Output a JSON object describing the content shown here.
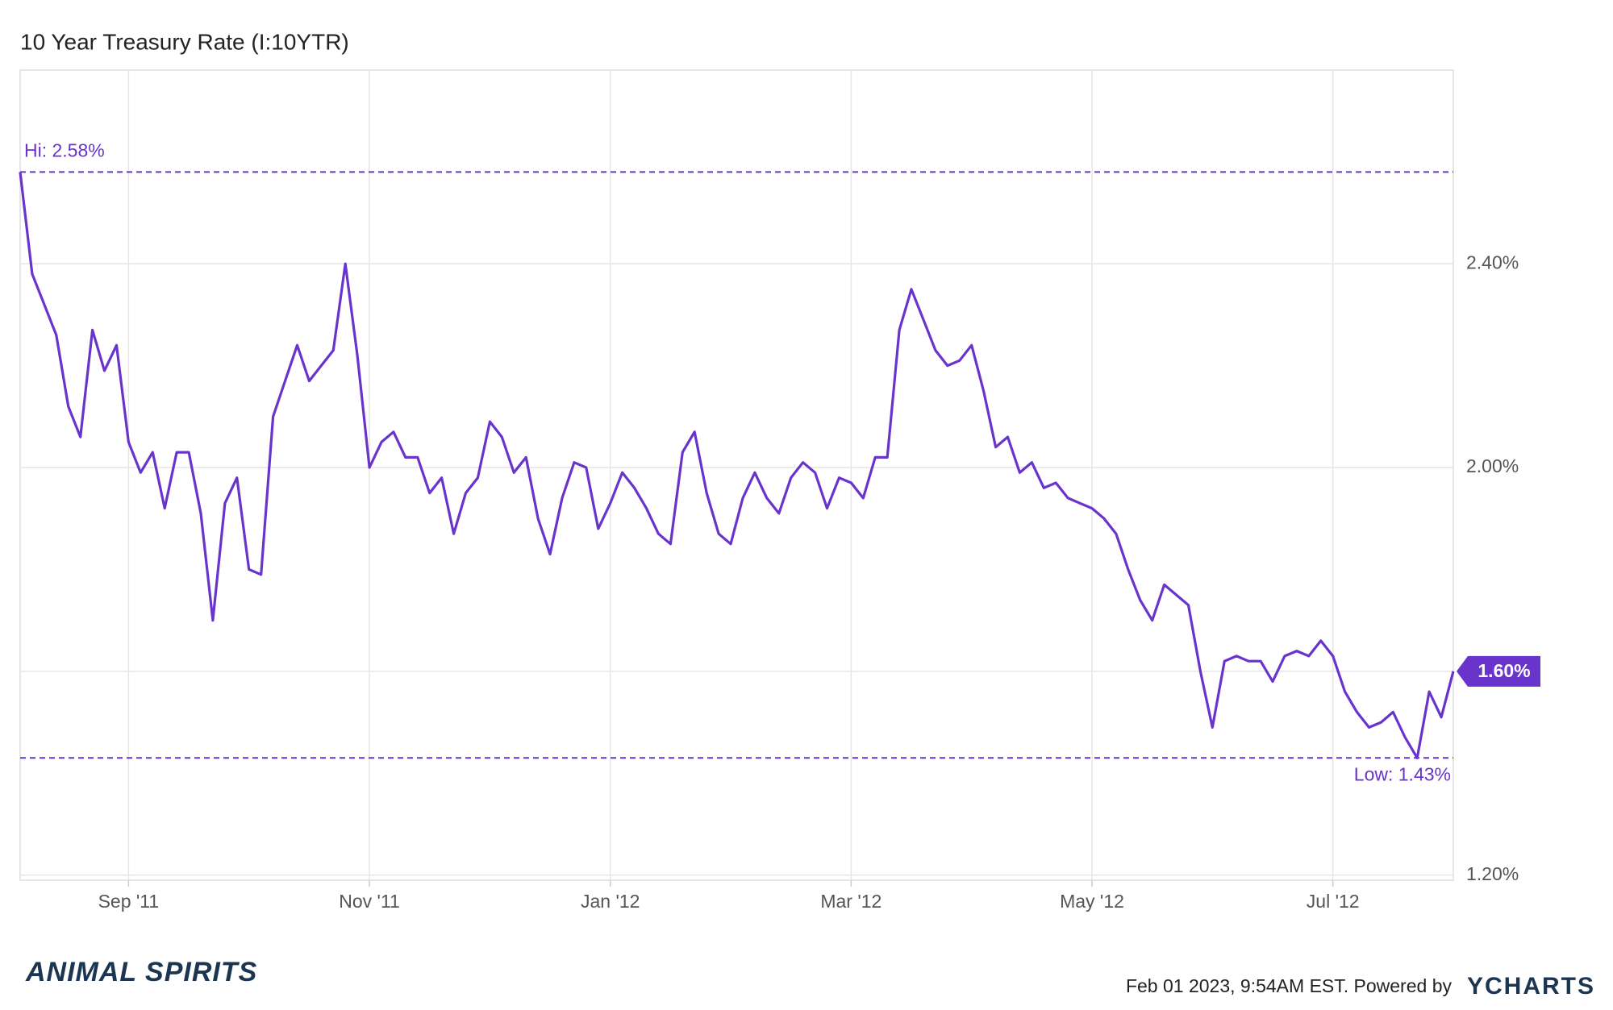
{
  "chart_data": {
    "type": "line",
    "title": "10 Year Treasury Rate (I:10YTR)",
    "categories": [
      null,
      null,
      null,
      null,
      null,
      null,
      null,
      null,
      null,
      "Sep '11",
      null,
      null,
      null,
      null,
      null,
      null,
      null,
      null,
      null,
      null,
      null,
      null,
      null,
      null,
      null,
      null,
      null,
      null,
      null,
      "Nov '11",
      null,
      null,
      null,
      null,
      null,
      null,
      null,
      null,
      null,
      null,
      null,
      null,
      null,
      null,
      null,
      null,
      null,
      null,
      null,
      "Jan '12",
      null,
      null,
      null,
      null,
      null,
      null,
      null,
      null,
      null,
      null,
      null,
      null,
      null,
      null,
      null,
      null,
      null,
      null,
      null,
      "Mar '12",
      null,
      null,
      null,
      null,
      null,
      null,
      null,
      null,
      null,
      null,
      null,
      null,
      null,
      null,
      null,
      null,
      null,
      null,
      null,
      "May '12",
      null,
      null,
      null,
      null,
      null,
      null,
      null,
      null,
      null,
      null,
      null,
      null,
      null,
      null,
      null,
      null,
      null,
      null,
      null,
      "Jul '12",
      null,
      null,
      null,
      null,
      null,
      null,
      null,
      null,
      null,
      null
    ],
    "series": [
      {
        "name": "10 Year Treasury Rate",
        "color": "#6834cc",
        "values": [
          2.58,
          2.38,
          2.32,
          2.26,
          2.12,
          2.06,
          2.27,
          2.19,
          2.24,
          2.05,
          1.99,
          2.03,
          1.92,
          2.03,
          2.03,
          1.91,
          1.7,
          1.93,
          1.98,
          1.8,
          1.79,
          2.1,
          2.17,
          2.24,
          2.17,
          2.2,
          2.23,
          2.4,
          2.22,
          2.0,
          2.05,
          2.07,
          2.02,
          2.02,
          1.95,
          1.98,
          1.87,
          1.95,
          1.98,
          2.09,
          2.06,
          1.99,
          2.02,
          1.9,
          1.83,
          1.94,
          2.01,
          2.0,
          1.88,
          1.93,
          1.99,
          1.96,
          1.92,
          1.87,
          1.85,
          2.03,
          2.07,
          1.95,
          1.87,
          1.85,
          1.94,
          1.99,
          1.94,
          1.91,
          1.98,
          2.01,
          1.99,
          1.92,
          1.98,
          1.97,
          1.94,
          2.02,
          2.02,
          2.27,
          2.35,
          2.29,
          2.23,
          2.2,
          2.21,
          2.24,
          2.15,
          2.04,
          2.06,
          1.99,
          2.01,
          1.96,
          1.97,
          1.94,
          1.93,
          1.92,
          1.9,
          1.87,
          1.8,
          1.74,
          1.7,
          1.77,
          1.75,
          1.73,
          1.6,
          1.49,
          1.62,
          1.63,
          1.62,
          1.62,
          1.58,
          1.63,
          1.64,
          1.63,
          1.66,
          1.63,
          1.56,
          1.52,
          1.49,
          1.5,
          1.52,
          1.47,
          1.43,
          1.56,
          1.51,
          1.6
        ]
      }
    ],
    "ylim": [
      1.19,
      2.78
    ],
    "yticks": [
      {
        "value": 1.2,
        "label": "1.20%"
      },
      {
        "value": 1.6,
        "label": "1.60%"
      },
      {
        "value": 2.0,
        "label": "2.00%"
      },
      {
        "value": 2.4,
        "label": "2.40%"
      }
    ],
    "grid": true,
    "annotations": [
      {
        "value": 2.58,
        "label": "Hi: 2.58%"
      },
      {
        "value": 1.43,
        "label": "Low: 1.43%"
      }
    ],
    "last_label": {
      "value": 1.6,
      "label": "1.60%"
    },
    "footer": {
      "brand": "ANIMAL SPIRITS",
      "timestamp": "Feb 01 2023, 9:54AM EST. Powered by",
      "source": "YCHARTS"
    }
  }
}
